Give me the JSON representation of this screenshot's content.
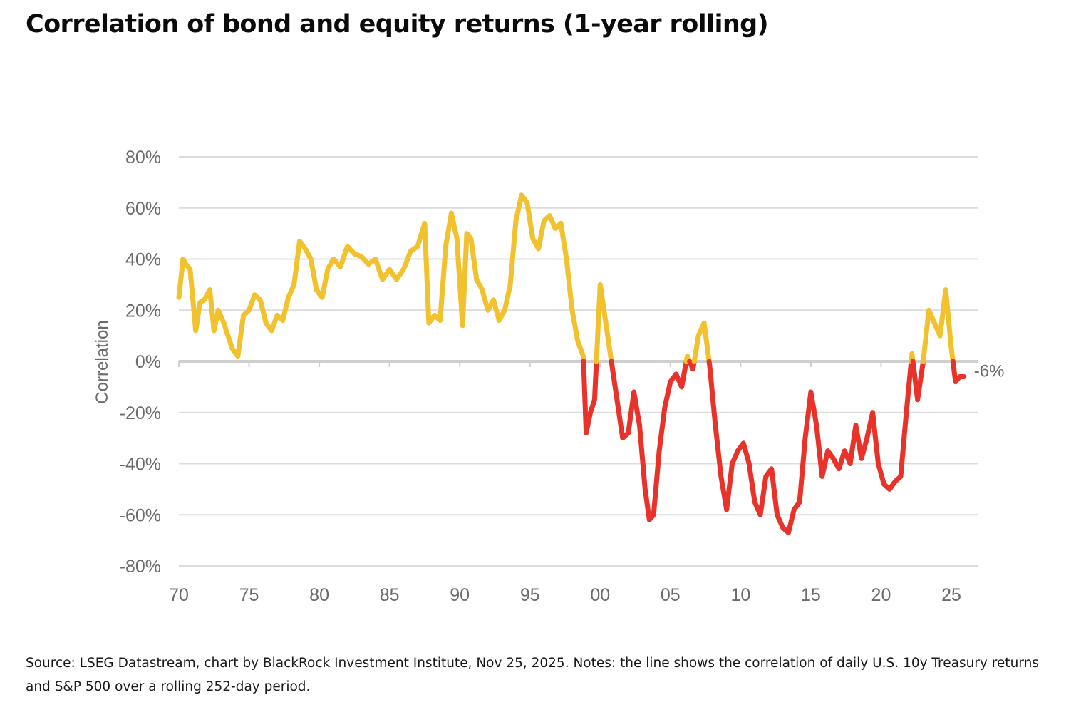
{
  "title": "Correlation of bond and equity returns (1-year rolling)",
  "source_note": "Source: LSEG Datastream, chart by BlackRock Investment Institute, Nov 25, 2025. Notes: the line shows the correlation of daily U.S. 10y Treasury returns and S&P 500 over a rolling 252-day period.",
  "chart_data": {
    "type": "line",
    "title": "Correlation of bond and equity returns (1-year rolling)",
    "xlabel": "",
    "ylabel": "Correlation",
    "xlim": [
      1970,
      2027
    ],
    "ylim": [
      -80,
      80
    ],
    "x_ticks": [
      1970,
      1975,
      1980,
      1985,
      1990,
      1995,
      2000,
      2005,
      2010,
      2015,
      2020,
      2025
    ],
    "x_tick_labels": [
      "70",
      "75",
      "80",
      "85",
      "90",
      "95",
      "00",
      "05",
      "10",
      "15",
      "20",
      "25"
    ],
    "y_ticks": [
      80,
      60,
      40,
      20,
      0,
      -20,
      -40,
      -60,
      -80
    ],
    "y_tick_labels": [
      "80%",
      "60%",
      "40%",
      "20%",
      "0%",
      "-20%",
      "-40%",
      "-60%",
      "-80%"
    ],
    "grid": "horizontal",
    "colors": {
      "positive": "#F2C12E",
      "negative": "#E8322A",
      "grid": "#dcdcdc",
      "zero_line": "#cfcfcf"
    },
    "end_label": "-6%",
    "series": [
      {
        "x": [
          1970.0,
          1970.3,
          1970.5,
          1970.8,
          1971.2,
          1971.5,
          1971.8,
          1972.2,
          1972.5,
          1972.8,
          1973.2,
          1973.5,
          1973.8,
          1974.2,
          1974.6,
          1975.0,
          1975.4,
          1975.8,
          1976.2,
          1976.6,
          1977.0,
          1977.4,
          1977.8,
          1978.2,
          1978.6,
          1979.0,
          1979.4,
          1979.8,
          1980.2,
          1980.6,
          1981.0,
          1981.5,
          1982.0,
          1982.5,
          1983.0,
          1983.5,
          1984.0,
          1984.5,
          1985.0,
          1985.5,
          1986.0,
          1986.5,
          1987.0,
          1987.5,
          1987.8,
          1988.2,
          1988.6,
          1989.0,
          1989.4,
          1989.8,
          1990.2,
          1990.5,
          1990.8,
          1991.2,
          1991.6,
          1992.0,
          1992.4,
          1992.8,
          1993.2,
          1993.6,
          1994.0,
          1994.4,
          1994.8,
          1995.2,
          1995.6,
          1996.0,
          1996.4,
          1996.8,
          1997.2,
          1997.6,
          1998.0,
          1998.4,
          1998.8,
          1999.0,
          1999.3,
          1999.6,
          2000.0,
          2000.4,
          2000.8,
          2001.2,
          2001.6,
          2002.0,
          2002.4,
          2002.8,
          2003.2,
          2003.5,
          2003.8,
          2004.2,
          2004.6,
          2005.0,
          2005.4,
          2005.8,
          2006.2,
          2006.6,
          2007.0,
          2007.4,
          2007.8,
          2008.2,
          2008.6,
          2009.0,
          2009.4,
          2009.8,
          2010.2,
          2010.6,
          2011.0,
          2011.4,
          2011.8,
          2012.2,
          2012.6,
          2013.0,
          2013.4,
          2013.8,
          2014.2,
          2014.6,
          2015.0,
          2015.4,
          2015.8,
          2016.2,
          2016.6,
          2017.0,
          2017.4,
          2017.8,
          2018.2,
          2018.6,
          2019.0,
          2019.4,
          2019.8,
          2020.2,
          2020.6,
          2021.0,
          2021.4,
          2021.8,
          2022.2,
          2022.6,
          2023.0,
          2023.4,
          2023.8,
          2024.2,
          2024.6,
          2025.0,
          2025.3,
          2025.6,
          2025.9
        ],
        "values": [
          25,
          40,
          38,
          36,
          12,
          23,
          24,
          28,
          12,
          20,
          15,
          10,
          5,
          2,
          18,
          20,
          26,
          24,
          15,
          12,
          18,
          16,
          25,
          30,
          47,
          44,
          40,
          28,
          25,
          36,
          40,
          37,
          45,
          42,
          41,
          38,
          40,
          32,
          36,
          32,
          36,
          43,
          45,
          54,
          15,
          18,
          16,
          45,
          58,
          48,
          14,
          50,
          48,
          32,
          28,
          20,
          24,
          16,
          20,
          30,
          55,
          65,
          62,
          48,
          44,
          55,
          57,
          52,
          54,
          40,
          20,
          8,
          2,
          -28,
          -20,
          -15,
          30,
          15,
          0,
          -15,
          -30,
          -28,
          -12,
          -25,
          -50,
          -62,
          -60,
          -35,
          -18,
          -8,
          -5,
          -10,
          2,
          -3,
          10,
          15,
          -2,
          -25,
          -45,
          -58,
          -40,
          -35,
          -32,
          -40,
          -55,
          -60,
          -45,
          -42,
          -60,
          -65,
          -67,
          -58,
          -55,
          -30,
          -12,
          -25,
          -45,
          -35,
          -38,
          -42,
          -35,
          -40,
          -25,
          -38,
          -30,
          -20,
          -40,
          -48,
          -50,
          -47,
          -45,
          -20,
          3,
          -15,
          0,
          20,
          15,
          10,
          28,
          5,
          -8,
          -6,
          -6
        ]
      }
    ]
  }
}
